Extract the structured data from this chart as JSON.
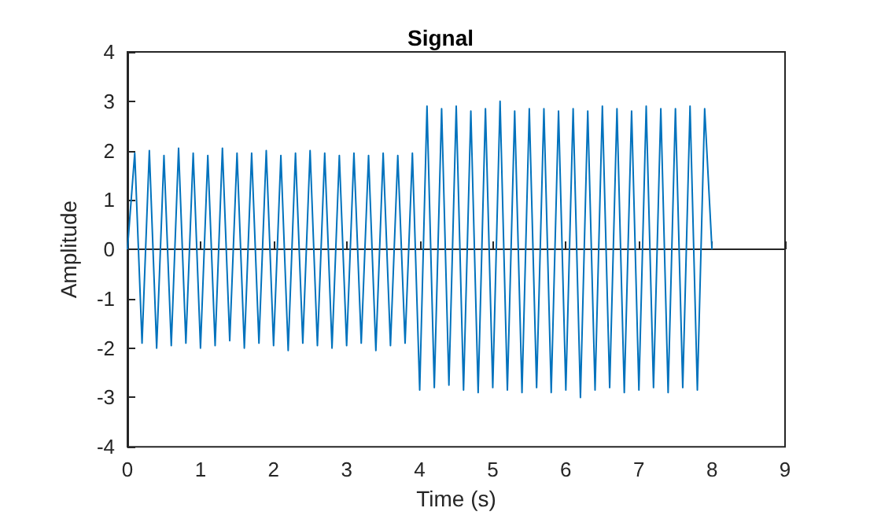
{
  "chart_data": {
    "type": "line",
    "title": "Signal",
    "xlabel": "Time (s)",
    "ylabel": "Amplitude",
    "color": "#0072bd",
    "marker": "none",
    "x": [
      0,
      0.1,
      0.2,
      0.3,
      0.4,
      0.5,
      0.6,
      0.7,
      0.8,
      0.9,
      1.0,
      1.1,
      1.2,
      1.3,
      1.4,
      1.5,
      1.6,
      1.7,
      1.8,
      1.9,
      2.0,
      2.1,
      2.2,
      2.3,
      2.4,
      2.5,
      2.6,
      2.7,
      2.8,
      2.9,
      3.0,
      3.1,
      3.2,
      3.3,
      3.4,
      3.5,
      3.6,
      3.7,
      3.8,
      3.9,
      4.0,
      4.1,
      4.2,
      4.3,
      4.4,
      4.5,
      4.6,
      4.7,
      4.8,
      4.9,
      5.0,
      5.1,
      5.2,
      5.3,
      5.4,
      5.5,
      5.6,
      5.7,
      5.8,
      5.9,
      6.0,
      6.1,
      6.2,
      6.3,
      6.4,
      6.5,
      6.6,
      6.7,
      6.8,
      6.9,
      7.0,
      7.1,
      7.2,
      7.3,
      7.4,
      7.5,
      7.6,
      7.7,
      7.8,
      7.9,
      8.0
    ],
    "values": [
      0,
      1.95,
      -1.9,
      2.0,
      -2.0,
      1.9,
      -1.95,
      2.05,
      -1.9,
      1.95,
      -2.0,
      1.9,
      -1.95,
      2.05,
      -1.85,
      1.95,
      -2.0,
      1.95,
      -1.9,
      2.0,
      -1.95,
      1.9,
      -2.05,
      1.95,
      -1.9,
      2.0,
      -1.95,
      1.95,
      -2.0,
      1.9,
      -1.95,
      1.95,
      -1.9,
      1.9,
      -2.05,
      1.95,
      -1.95,
      1.9,
      -1.9,
      1.95,
      -2.85,
      2.9,
      -2.8,
      2.85,
      -2.75,
      2.9,
      -2.85,
      2.8,
      -2.9,
      2.85,
      -2.8,
      3.0,
      -2.85,
      2.8,
      -2.9,
      2.85,
      -2.8,
      2.85,
      -2.9,
      2.8,
      -2.85,
      2.85,
      -3.0,
      2.8,
      -2.85,
      2.9,
      -2.8,
      2.85,
      -2.9,
      2.8,
      -2.85,
      2.9,
      -2.8,
      2.85,
      -2.9,
      2.85,
      -2.8,
      2.9,
      -2.85,
      2.85,
      0
    ],
    "xlim": [
      0,
      9
    ],
    "xticks": [
      0,
      1,
      2,
      3,
      4,
      5,
      6,
      7,
      8,
      9
    ],
    "ylim": [
      -4,
      4
    ],
    "yticks": [
      -4,
      -3,
      -2,
      -1,
      0,
      1,
      2,
      3,
      4
    ]
  }
}
